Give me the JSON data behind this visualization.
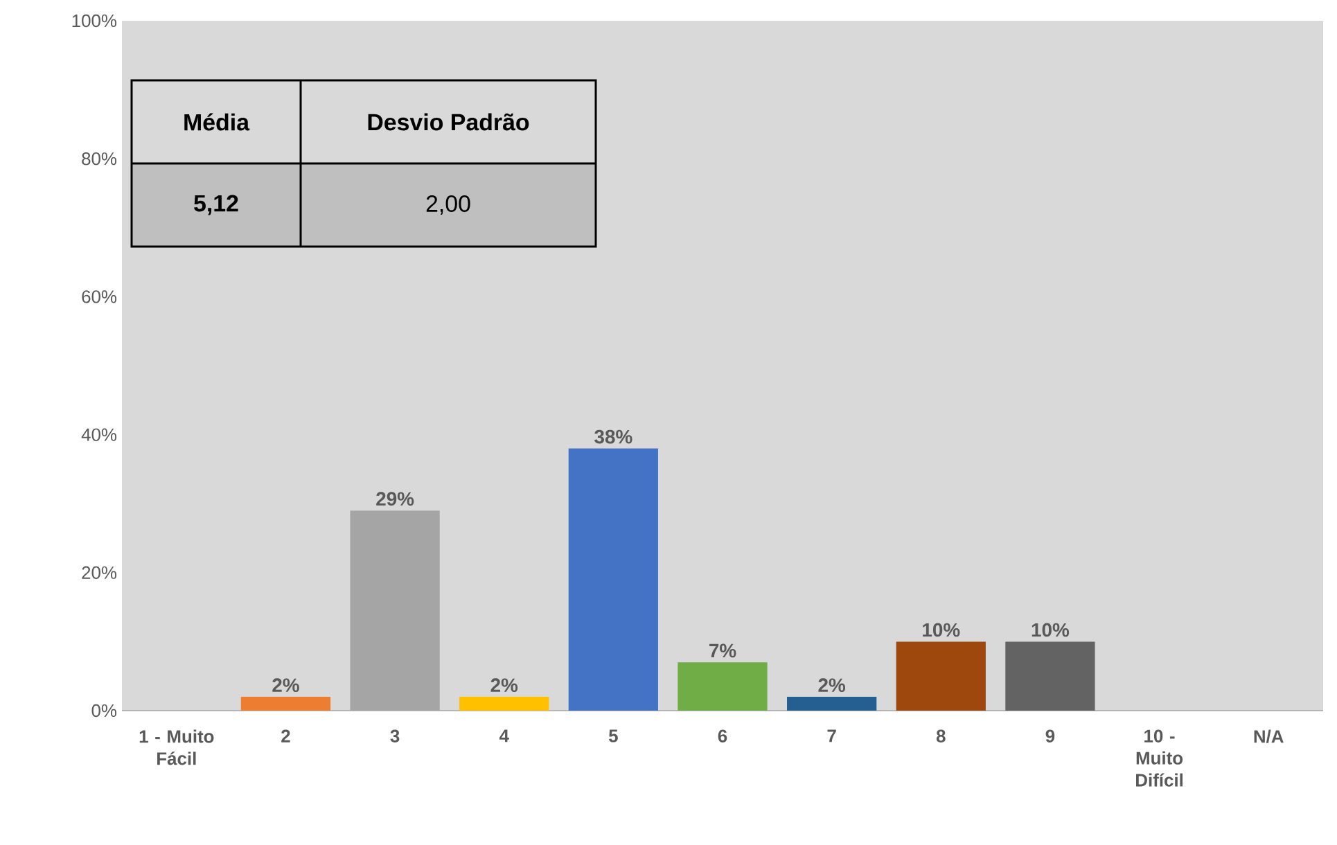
{
  "chart_data": {
    "type": "bar",
    "categories": [
      "1 - Muito Fácil",
      "2",
      "3",
      "4",
      "5",
      "6",
      "7",
      "8",
      "9",
      "10 - Muito Difícil",
      "N/A"
    ],
    "values": [
      0,
      2,
      29,
      2,
      38,
      7,
      2,
      10,
      10,
      0,
      0
    ],
    "value_labels": [
      null,
      "2%",
      "29%",
      "2%",
      "38%",
      "7%",
      "2%",
      "10%",
      "10%",
      null,
      null
    ],
    "colors": [
      "#5b9bd5",
      "#ed7d31",
      "#a5a5a5",
      "#ffc000",
      "#4472c4",
      "#70ad47",
      "#255e91",
      "#9e480e",
      "#636363",
      "#997300",
      "#264478"
    ],
    "ylim": [
      0,
      100
    ],
    "yticks": [
      {
        "value": 0,
        "label": "0%"
      },
      {
        "value": 20,
        "label": "20%"
      },
      {
        "value": 40,
        "label": "40%"
      },
      {
        "value": 60,
        "label": "60%"
      },
      {
        "value": 80,
        "label": "80%"
      },
      {
        "value": 100,
        "label": "100%"
      }
    ],
    "grid": false,
    "annotations": [
      "Média",
      "Desvio Padrão",
      "5,12",
      "2,00"
    ]
  }
}
